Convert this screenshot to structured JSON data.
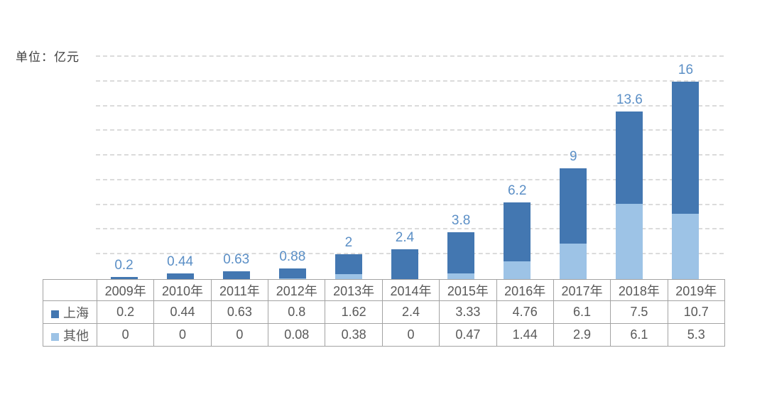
{
  "unit_label": "单位：亿元",
  "chart_data": {
    "type": "bar",
    "stacked": true,
    "title": "",
    "xlabel": "",
    "ylabel": "单位：亿元",
    "categories": [
      "2009年",
      "2010年",
      "2011年",
      "2012年",
      "2013年",
      "2014年",
      "2015年",
      "2016年",
      "2017年",
      "2018年",
      "2019年"
    ],
    "series": [
      {
        "name": "上海",
        "color": "#4377B1",
        "stack_position": "top",
        "values": [
          0.2,
          0.44,
          0.63,
          0.8,
          1.62,
          2.4,
          3.33,
          4.76,
          6.1,
          7.5,
          10.7
        ]
      },
      {
        "name": "其他",
        "color": "#9DC3E6",
        "stack_position": "bottom",
        "values": [
          0,
          0,
          0,
          0.08,
          0.38,
          0,
          0.47,
          1.44,
          2.9,
          6.1,
          5.3
        ]
      }
    ],
    "total_labels": [
      "0.2",
      "0.44",
      "0.63",
      "0.88",
      "2",
      "2.4",
      "3.8",
      "6.2",
      "9",
      "13.6",
      "16"
    ],
    "ylim": [
      0,
      18
    ],
    "grid_step": 2,
    "grid": "horizontal-dashed",
    "legend_position": "table-row-headers",
    "colors": {
      "value_label": "#5B8FC6",
      "gridline": "#DBDBDB",
      "table_border": "#A3A3A3",
      "table_text": "#595959",
      "unit_text": "#3D3D3D"
    }
  }
}
